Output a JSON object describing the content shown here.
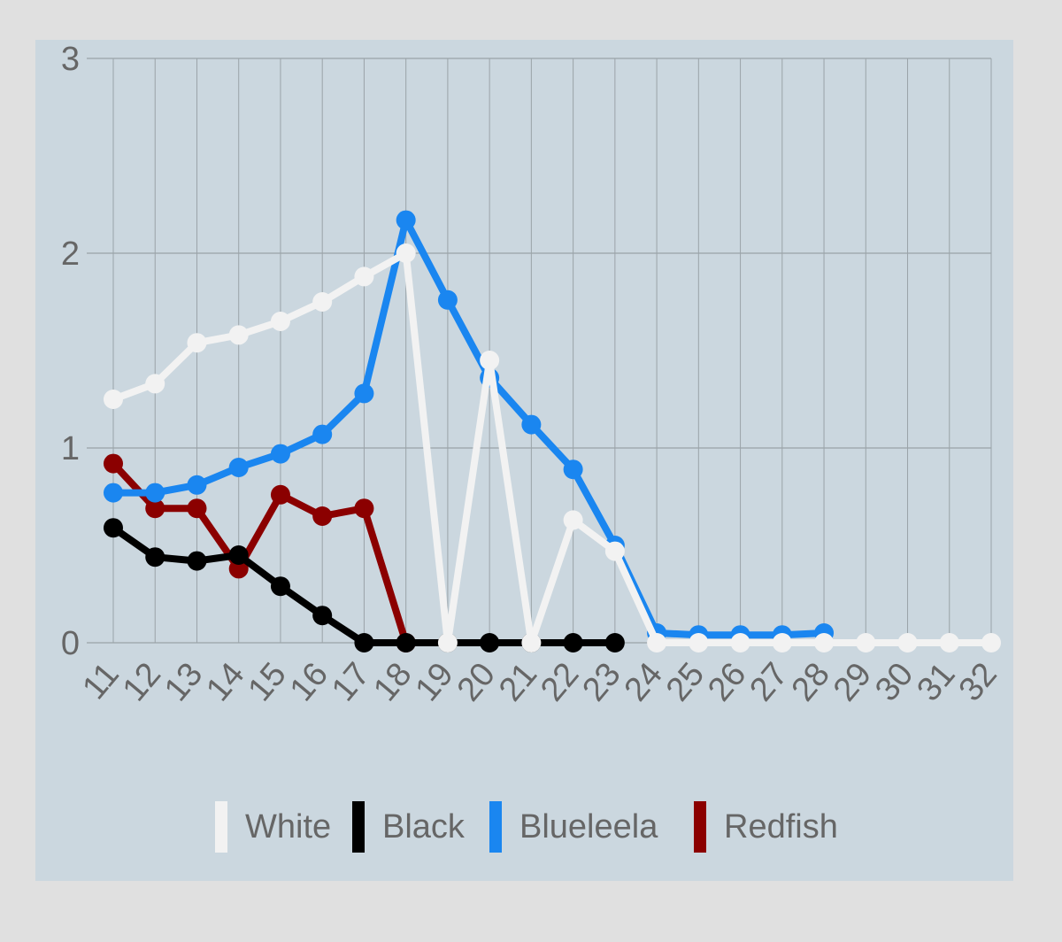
{
  "chart_data": {
    "type": "line",
    "categories": [
      "11",
      "12",
      "13",
      "14",
      "15",
      "16",
      "17",
      "18",
      "19",
      "20",
      "21",
      "22",
      "23",
      "24",
      "25",
      "26",
      "27",
      "28",
      "29",
      "30",
      "31",
      "32"
    ],
    "series": [
      {
        "name": "White",
        "color": "#f2f2f2",
        "values": [
          1.25,
          1.33,
          1.54,
          1.58,
          1.65,
          1.75,
          1.88,
          2.0,
          0,
          1.45,
          0,
          0.63,
          0.47,
          0,
          0,
          0,
          0,
          0,
          0,
          0,
          0,
          0
        ]
      },
      {
        "name": "Black",
        "color": "#000000",
        "values": [
          0.59,
          0.44,
          0.42,
          0.45,
          0.29,
          0.14,
          0,
          0,
          0,
          0,
          0,
          0,
          0,
          null,
          null,
          null,
          null,
          null,
          null,
          null,
          null,
          null
        ]
      },
      {
        "name": "Blueleela",
        "color": "#1a86f0",
        "values": [
          0.77,
          0.77,
          0.81,
          0.9,
          0.97,
          1.07,
          1.28,
          2.17,
          1.76,
          1.36,
          1.12,
          0.89,
          0.5,
          0.05,
          0.04,
          0.04,
          0.04,
          0.05,
          null,
          null,
          null,
          null
        ]
      },
      {
        "name": "Redfish",
        "color": "#8b0000",
        "values": [
          0.92,
          0.69,
          0.69,
          0.38,
          0.76,
          0.65,
          0.69,
          0,
          null,
          null,
          null,
          null,
          null,
          null,
          null,
          null,
          null,
          null,
          null,
          null,
          null,
          null
        ]
      }
    ],
    "ylim": [
      0,
      3
    ],
    "yticks": [
      0,
      1,
      2,
      3
    ],
    "grid": true
  }
}
